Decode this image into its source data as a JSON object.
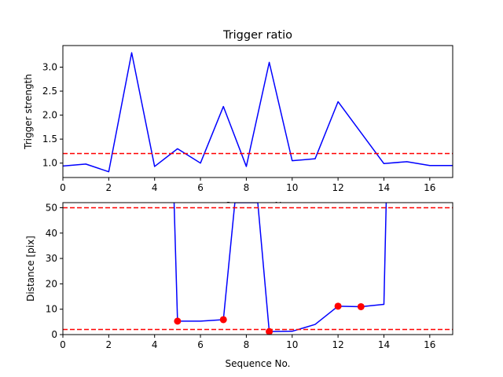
{
  "chart_data": [
    {
      "type": "line",
      "title": "Trigger ratio",
      "xlabel": "Sequence No.",
      "ylabel": "Trigger strength",
      "xlim": [
        0,
        17
      ],
      "ylim": [
        0.7,
        3.45
      ],
      "xticks": [
        "0",
        "2",
        "4",
        "6",
        "8",
        "10",
        "12",
        "14",
        "16"
      ],
      "yticks": [
        "1.0",
        "1.5",
        "2.0",
        "2.5",
        "3.0"
      ],
      "grid": false,
      "series": [
        {
          "x": [
            0,
            1,
            2,
            3,
            4,
            5,
            6,
            7,
            8,
            9,
            10,
            11,
            12,
            14,
            15,
            16,
            17
          ],
          "y": [
            0.94,
            0.98,
            0.82,
            3.3,
            0.93,
            1.3,
            1.0,
            2.18,
            0.93,
            3.1,
            1.05,
            1.09,
            2.28,
            0.99,
            1.03,
            0.95,
            0.95
          ],
          "color": "#0000ff"
        }
      ],
      "hlines": [
        {
          "y": 1.2,
          "color": "#ff0000",
          "style": "dashed"
        }
      ]
    },
    {
      "type": "line",
      "title": "",
      "xlabel": "Sequence No.",
      "ylabel": "Distance [pix]",
      "xlim": [
        0,
        17
      ],
      "ylim": [
        0,
        52
      ],
      "xticks": [
        "0",
        "2",
        "4",
        "6",
        "8",
        "10",
        "12",
        "14",
        "16"
      ],
      "yticks": [
        "0",
        "10",
        "20",
        "30",
        "40",
        "50"
      ],
      "grid": false,
      "series": [
        {
          "x": [
            4.85,
            5,
            6,
            7,
            7.5,
            8.5,
            9,
            10,
            11,
            12,
            13,
            14,
            14.1
          ],
          "y": [
            52,
            5.3,
            5.3,
            5.9,
            52,
            52,
            1.2,
            1.3,
            4.0,
            11.2,
            11.0,
            11.9,
            52
          ],
          "color": "#0000ff"
        }
      ],
      "markers": {
        "x": [
          5,
          7,
          9,
          12,
          13
        ],
        "y": [
          5.3,
          5.9,
          1.2,
          11.2,
          11.0
        ],
        "color": "#ff0000"
      },
      "hlines": [
        {
          "y": 50,
          "color": "#ff0000",
          "style": "dashed"
        },
        {
          "y": 2,
          "color": "#ff0000",
          "style": "dashed"
        }
      ]
    }
  ]
}
